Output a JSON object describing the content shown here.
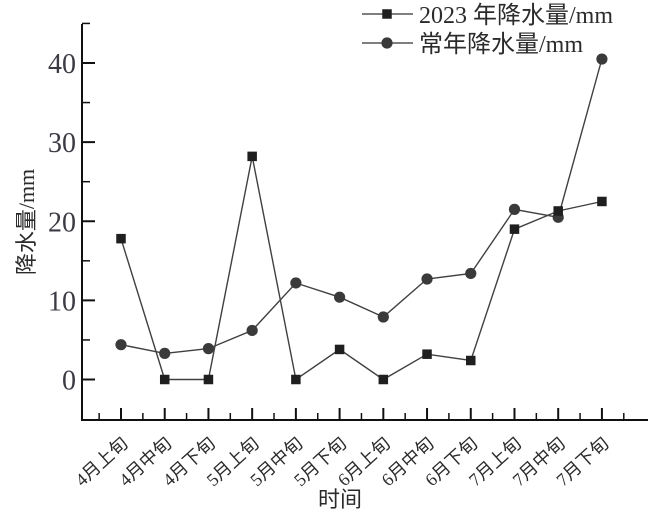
{
  "chart_data": {
    "type": "line",
    "title": "",
    "xlabel": "时间",
    "ylabel": "降水量/mm",
    "categories": [
      "4月上旬",
      "4月中旬",
      "4月下旬",
      "5月上旬",
      "5月中旬",
      "5月下旬",
      "6月上旬",
      "6月中旬",
      "6月下旬",
      "7月上旬",
      "7月中旬",
      "7月下旬"
    ],
    "series": [
      {
        "name": "2023 年降水量/mm",
        "marker": "square",
        "color": "#1f1f1f",
        "line_color": "#404040",
        "values": [
          17.8,
          0,
          0,
          28.2,
          0,
          3.8,
          0,
          3.2,
          2.4,
          19.0,
          21.3,
          22.5
        ]
      },
      {
        "name": "常年降水量/mm",
        "marker": "circle",
        "color": "#3a3a3a",
        "line_color": "#404040",
        "values": [
          4.4,
          3.3,
          3.9,
          6.2,
          12.2,
          10.4,
          7.9,
          12.7,
          13.4,
          21.5,
          20.5,
          40.5
        ]
      }
    ],
    "ylim": [
      -5,
      45
    ],
    "yticks_major": [
      0,
      10,
      20,
      30,
      40
    ],
    "yticks_minor": [
      5,
      15,
      25,
      35,
      45
    ],
    "ytick_labels": [
      "0",
      "10",
      "20",
      "30",
      "40"
    ],
    "grid": false,
    "legend_position": "top-center",
    "axis_color": "#111111",
    "tick_label_color": "#3b3b44",
    "text_color": "#2b2b2b"
  }
}
